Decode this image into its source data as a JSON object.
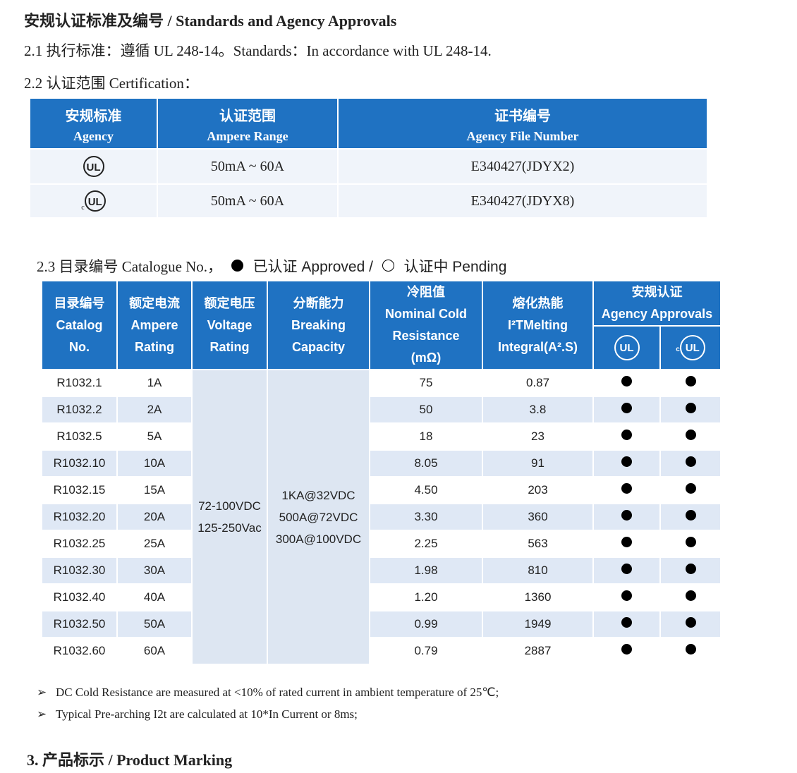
{
  "heading": "安规认证标准及编号  / Standards and Agency Approvals",
  "s21": "2.1 执行标准：遵循 UL 248-14。Standards：In accordance with UL 248-14.",
  "s22": "2.2 认证范围  Certification：",
  "cert_table": {
    "headers": [
      [
        "安规标准",
        "Agency"
      ],
      [
        "认证范围",
        "Ampere Range"
      ],
      [
        "证书编号",
        "Agency File Number"
      ]
    ],
    "rows": [
      {
        "agency_icon": "ul-mark",
        "range": "50mA ~ 60A",
        "file": "E340427(JDYX2)"
      },
      {
        "agency_icon": "cul-mark",
        "range": "50mA ~ 60A",
        "file": "E340427(JDYX8)"
      }
    ],
    "ul_text": "UL",
    "c_text": "c"
  },
  "s23": {
    "label": "2.3  目录编号  Catalogue No.，",
    "approved": "已认证 Approved /",
    "pending": "认证中 Pending"
  },
  "catalog_table": {
    "headers": {
      "catalog": [
        "目录编号",
        "Catalog",
        "No."
      ],
      "ampere": [
        "额定电流",
        "Ampere",
        "Rating"
      ],
      "voltage": [
        "额定电压",
        "Voltage",
        "Rating"
      ],
      "breaking": [
        "分断能力",
        "Breaking",
        "Capacity"
      ],
      "resistance": [
        "冷阻值",
        "Nominal Cold",
        "Resistance",
        "(mΩ)"
      ],
      "melting": [
        "熔化热能",
        "I²TMelting",
        "Integral(A².S)"
      ],
      "agency": [
        "安规认证",
        "Agency Approvals"
      ]
    },
    "voltage": [
      "72-100VDC",
      "125-250Vac"
    ],
    "breaking": [
      "1KA@32VDC",
      "500A@72VDC",
      "300A@100VDC"
    ],
    "rows": [
      {
        "no": "R1032.1",
        "amp": "1A",
        "res": "75",
        "i2t": "0.87",
        "ul": "approved",
        "cul": "approved"
      },
      {
        "no": "R1032.2",
        "amp": "2A",
        "res": "50",
        "i2t": "3.8",
        "ul": "approved",
        "cul": "approved"
      },
      {
        "no": "R1032.5",
        "amp": "5A",
        "res": "18",
        "i2t": "23",
        "ul": "approved",
        "cul": "approved"
      },
      {
        "no": "R1032.10",
        "amp": "10A",
        "res": "8.05",
        "i2t": "91",
        "ul": "approved",
        "cul": "approved"
      },
      {
        "no": "R1032.15",
        "amp": "15A",
        "res": "4.50",
        "i2t": "203",
        "ul": "approved",
        "cul": "approved"
      },
      {
        "no": "R1032.20",
        "amp": "20A",
        "res": "3.30",
        "i2t": "360",
        "ul": "approved",
        "cul": "approved"
      },
      {
        "no": "R1032.25",
        "amp": "25A",
        "res": "2.25",
        "i2t": "563",
        "ul": "approved",
        "cul": "approved"
      },
      {
        "no": "R1032.30",
        "amp": "30A",
        "res": "1.98",
        "i2t": "810",
        "ul": "approved",
        "cul": "approved"
      },
      {
        "no": "R1032.40",
        "amp": "40A",
        "res": "1.20",
        "i2t": "1360",
        "ul": "approved",
        "cul": "approved"
      },
      {
        "no": "R1032.50",
        "amp": "50A",
        "res": "0.99",
        "i2t": "1949",
        "ul": "approved",
        "cul": "approved"
      },
      {
        "no": "R1032.60",
        "amp": "60A",
        "res": "0.79",
        "i2t": "2887",
        "ul": "approved",
        "cul": "approved"
      }
    ]
  },
  "notes": [
    "DC Cold Resistance are measured at <10% of rated current in ambient temperature of 25℃;",
    "Typical Pre-arching I2t are calculated at 10*In Current or 8ms;"
  ],
  "section3": "3.  产品标示  / Product Marking",
  "colors": {
    "header_blue": "#1f72c2",
    "row_tint": "#dfe8f5"
  }
}
